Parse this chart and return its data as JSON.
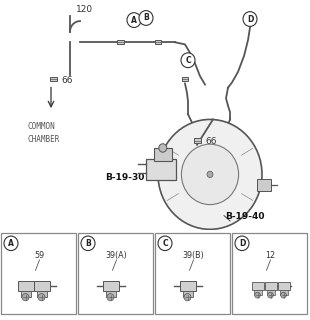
{
  "bg_color": "#ffffff",
  "line_color": "#555555",
  "text_color": "#333333",
  "labels": {
    "num_120": "120",
    "num_66a": "66",
    "num_66b": "66",
    "common_chamber_line1": "COMMON",
    "common_chamber_line2": "CHAMBER",
    "b1930": "B-19-30",
    "b1940": "B-19-40",
    "val_59": "59",
    "val_39A": "39(A)",
    "val_39B": "39(B)",
    "val_12": "12"
  },
  "circle_labels": [
    "A",
    "B",
    "C",
    "D"
  ],
  "box_vals": [
    "59",
    "39(A)",
    "39(B)",
    "12"
  ]
}
